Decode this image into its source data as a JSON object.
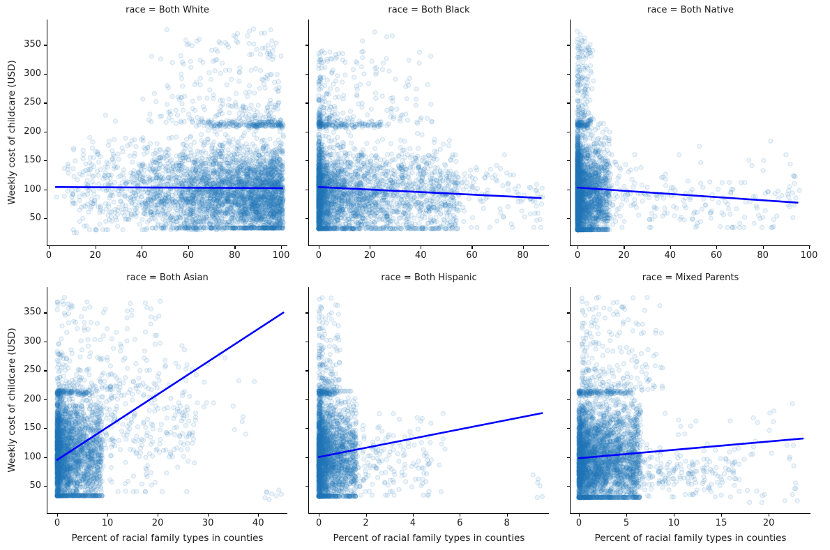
{
  "figure": {
    "background": "#ffffff",
    "ylabel": "Weekly cost of childcare (USD)",
    "xlabel": "Percent of racial family types in counties",
    "marker_color": "#1f77b4",
    "marker_alpha": 0.085,
    "marker_edge_alpha": 0.16,
    "line_color": "#0000ff",
    "spine_color": "#000000",
    "text_color": "#1a1a1a",
    "yticks": [
      50,
      100,
      150,
      200,
      250,
      300,
      350
    ],
    "ylim": [
      3,
      394
    ]
  },
  "chart_data": {
    "type": "scatter",
    "description": "Faceted scatter plots (2 rows x 3 columns) of weekly childcare cost vs percent of racial family types in counties, one facet per race category, each with a blue linear regression fit line.",
    "legend": "none",
    "grid": false,
    "facets": [
      {
        "title": "race = Both White",
        "xticks": [
          0,
          20,
          40,
          60,
          80,
          100
        ],
        "xlim": [
          -0.6,
          102.7
        ],
        "show_xlabel": false,
        "regression": {
          "x1": 3,
          "y1": 104,
          "x2": 100.5,
          "y2": 102
        },
        "clusters": [
          {
            "n": 3000,
            "x": {
              "d": "skew",
              "min": 33,
              "max": 101,
              "k": 0.42
            },
            "y": {
              "d": "gauss",
              "m": 92,
              "s": 42,
              "min": 33,
              "max": 214
            }
          },
          {
            "n": 700,
            "x": {
              "d": "skew",
              "min": 8,
              "max": 75,
              "k": 0.75
            },
            "y": {
              "d": "gauss",
              "m": 100,
              "s": 40,
              "min": 30,
              "max": 230
            }
          },
          {
            "n": 280,
            "x": {
              "d": "skew",
              "min": 40,
              "max": 100,
              "k": 0.55
            },
            "y": {
              "d": "skew",
              "min": 216,
              "max": 378,
              "k": 2.4
            }
          },
          {
            "n": 150,
            "x": {
              "d": "skew",
              "min": 55,
              "max": 101,
              "k": 0.5
            },
            "y": {
              "d": "gauss",
              "m": 211,
              "s": 2,
              "min": 206,
              "max": 216
            }
          },
          {
            "n": 45,
            "x": {
              "d": "uniform",
              "min": 3,
              "max": 30
            },
            "y": {
              "d": "gauss",
              "m": 110,
              "s": 52,
              "min": 25,
              "max": 320
            }
          }
        ]
      },
      {
        "title": "race = Both Black",
        "xticks": [
          0,
          20,
          40,
          60,
          80
        ],
        "xlim": [
          -3.8,
          90.2
        ],
        "show_xlabel": false,
        "regression": {
          "x1": 0,
          "y1": 104,
          "x2": 87,
          "y2": 85
        },
        "clusters": [
          {
            "n": 2500,
            "x": {
              "d": "skew",
              "min": 0,
              "max": 55,
              "k": 3.0
            },
            "y": {
              "d": "gauss",
              "m": 92,
              "s": 44,
              "min": 32,
              "max": 214
            }
          },
          {
            "n": 600,
            "x": {
              "d": "skew",
              "min": 0,
              "max": 88,
              "k": 2.2
            },
            "y": {
              "d": "gauss",
              "m": 85,
              "s": 32,
              "min": 34,
              "max": 160
            }
          },
          {
            "n": 230,
            "x": {
              "d": "skew",
              "min": 0,
              "max": 45,
              "k": 2.6
            },
            "y": {
              "d": "skew",
              "min": 216,
              "max": 340,
              "k": 2.0
            }
          },
          {
            "n": 130,
            "x": {
              "d": "skew",
              "min": 0,
              "max": 28,
              "k": 2.2
            },
            "y": {
              "d": "gauss",
              "m": 211,
              "s": 2,
              "min": 206,
              "max": 216
            }
          },
          {
            "n": 10,
            "x": {
              "d": "uniform",
              "min": 8,
              "max": 30
            },
            "y": {
              "d": "skew",
              "min": 300,
              "max": 375,
              "k": 1.2
            }
          }
        ]
      },
      {
        "title": "race = Both Native",
        "xticks": [
          0,
          20,
          40,
          60,
          80,
          100
        ],
        "xlim": [
          -3,
          100.6
        ],
        "show_xlabel": false,
        "regression": {
          "x1": 0,
          "y1": 103,
          "x2": 95,
          "y2": 77
        },
        "clusters": [
          {
            "n": 2600,
            "x": {
              "d": "skew",
              "min": 0,
              "max": 14,
              "k": 3.2
            },
            "y": {
              "d": "gauss",
              "m": 92,
              "s": 46,
              "min": 30,
              "max": 214
            }
          },
          {
            "n": 380,
            "x": {
              "d": "skew",
              "min": 0,
              "max": 96,
              "k": 2.6
            },
            "y": {
              "d": "gauss",
              "m": 82,
              "s": 30,
              "min": 34,
              "max": 160
            }
          },
          {
            "n": 170,
            "x": {
              "d": "skew",
              "min": 0,
              "max": 7,
              "k": 2.0
            },
            "y": {
              "d": "skew",
              "min": 216,
              "max": 378,
              "k": 1.9
            }
          },
          {
            "n": 70,
            "x": {
              "d": "skew",
              "min": 0,
              "max": 5,
              "k": 1.6
            },
            "y": {
              "d": "gauss",
              "m": 211,
              "s": 2,
              "min": 206,
              "max": 216
            }
          },
          {
            "n": 18,
            "x": {
              "d": "uniform",
              "min": 20,
              "max": 96
            },
            "y": {
              "d": "gauss",
              "m": 110,
              "s": 40,
              "min": 45,
              "max": 230
            }
          }
        ]
      },
      {
        "title": "race = Both Asian",
        "xticks": [
          0,
          10,
          20,
          30,
          40
        ],
        "xlim": [
          -1.94,
          45.8
        ],
        "show_xlabel": true,
        "regression": {
          "x1": 0,
          "y1": 95,
          "x2": 45,
          "y2": 350
        },
        "clusters": [
          {
            "n": 2500,
            "x": {
              "d": "skew",
              "min": 0,
              "max": 9,
              "k": 2.6
            },
            "y": {
              "d": "gauss",
              "m": 100,
              "s": 50,
              "min": 33,
              "max": 214
            }
          },
          {
            "n": 450,
            "x": {
              "d": "skew",
              "min": 0,
              "max": 28,
              "k": 1.9
            },
            "y": {
              "d": "gauss",
              "m": 150,
              "s": 58,
              "min": 40,
              "max": 295
            }
          },
          {
            "n": 180,
            "x": {
              "d": "skew",
              "min": 0,
              "max": 22,
              "k": 1.6
            },
            "y": {
              "d": "skew",
              "min": 216,
              "max": 378,
              "k": 1.8
            }
          },
          {
            "n": 90,
            "x": {
              "d": "skew",
              "min": 0,
              "max": 7,
              "k": 1.6
            },
            "y": {
              "d": "gauss",
              "m": 211,
              "s": 2,
              "min": 206,
              "max": 216
            }
          },
          {
            "n": 25,
            "x": {
              "d": "uniform",
              "min": 20,
              "max": 40
            },
            "y": {
              "d": "uniform",
              "min": 120,
              "max": 300
            }
          },
          {
            "n": 8,
            "x": {
              "d": "uniform",
              "min": 41,
              "max": 45
            },
            "y": {
              "d": "uniform",
              "min": 22,
              "max": 45
            }
          }
        ]
      },
      {
        "title": "race = Both Hispanic",
        "xticks": [
          0,
          2,
          4,
          6,
          8
        ],
        "xlim": [
          -0.42,
          9.79
        ],
        "show_xlabel": true,
        "regression": {
          "x1": 0,
          "y1": 100,
          "x2": 9.5,
          "y2": 176
        },
        "clusters": [
          {
            "n": 2300,
            "x": {
              "d": "skew",
              "min": 0,
              "max": 1.6,
              "k": 2.8
            },
            "y": {
              "d": "gauss",
              "m": 98,
              "s": 50,
              "min": 32,
              "max": 214
            }
          },
          {
            "n": 350,
            "x": {
              "d": "skew",
              "min": 0,
              "max": 4.8,
              "k": 2.2
            },
            "y": {
              "d": "gauss",
              "m": 90,
              "s": 36,
              "min": 34,
              "max": 175
            }
          },
          {
            "n": 150,
            "x": {
              "d": "skew",
              "min": 0,
              "max": 0.9,
              "k": 2.0
            },
            "y": {
              "d": "skew",
              "min": 216,
              "max": 378,
              "k": 1.9
            }
          },
          {
            "n": 80,
            "x": {
              "d": "skew",
              "min": 0,
              "max": 0.7,
              "k": 1.5
            },
            "y": {
              "d": "gauss",
              "m": 211,
              "s": 2,
              "min": 206,
              "max": 216
            }
          },
          {
            "n": 20,
            "x": {
              "d": "uniform",
              "min": 1.6,
              "max": 6.2
            },
            "y": {
              "d": "gauss",
              "m": 105,
              "s": 45,
              "min": 40,
              "max": 210
            }
          },
          {
            "n": 6,
            "x": {
              "d": "uniform",
              "min": 9.1,
              "max": 9.6
            },
            "y": {
              "d": "uniform",
              "min": 30,
              "max": 72
            }
          }
        ]
      },
      {
        "title": "race = Mixed Parents",
        "xticks": [
          0,
          5,
          10,
          15,
          20
        ],
        "xlim": [
          -0.88,
          24.4
        ],
        "show_xlabel": true,
        "regression": {
          "x1": 0,
          "y1": 98,
          "x2": 23.6,
          "y2": 132
        },
        "clusters": [
          {
            "n": 3000,
            "x": {
              "d": "skew",
              "min": 0,
              "max": 6.5,
              "k": 1.9
            },
            "y": {
              "d": "gauss",
              "m": 98,
              "s": 48,
              "min": 30,
              "max": 214
            }
          },
          {
            "n": 500,
            "x": {
              "d": "skew",
              "min": 0,
              "max": 17,
              "k": 2.3
            },
            "y": {
              "d": "gauss",
              "m": 72,
              "s": 24,
              "min": 31,
              "max": 140
            }
          },
          {
            "n": 220,
            "x": {
              "d": "skew",
              "min": 0.3,
              "max": 9,
              "k": 1.7
            },
            "y": {
              "d": "skew",
              "min": 216,
              "max": 378,
              "k": 1.9
            }
          },
          {
            "n": 120,
            "x": {
              "d": "skew",
              "min": 0,
              "max": 5.5,
              "k": 1.5
            },
            "y": {
              "d": "gauss",
              "m": 211,
              "s": 2,
              "min": 206,
              "max": 216
            }
          },
          {
            "n": 35,
            "x": {
              "d": "uniform",
              "min": 8,
              "max": 23
            },
            "y": {
              "d": "gauss",
              "m": 105,
              "s": 45,
              "min": 35,
              "max": 230
            }
          },
          {
            "n": 9,
            "x": {
              "d": "uniform",
              "min": 17.5,
              "max": 23.8
            },
            "y": {
              "d": "uniform",
              "min": 20,
              "max": 55
            }
          }
        ]
      }
    ]
  }
}
